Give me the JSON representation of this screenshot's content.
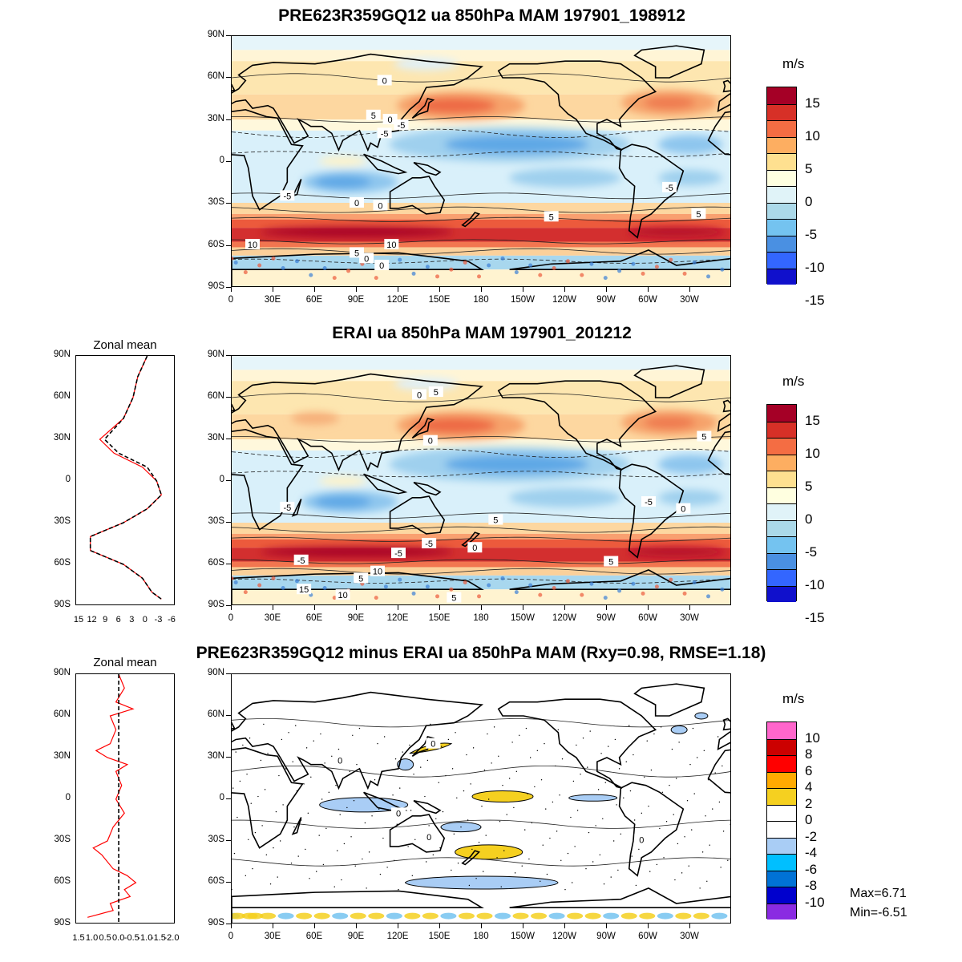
{
  "panels": [
    {
      "title": "PRE623R359GQ12 ua 850hPa MAM 197901_198912",
      "units": "m/s",
      "contour_labels": [
        "0",
        "5",
        "0",
        "-5",
        "-5",
        "-5",
        "0",
        "0",
        "-5",
        "5",
        "5",
        "10",
        "10",
        "5",
        "0",
        "0"
      ],
      "colorbar": {
        "colors": [
          "#a50026",
          "#d73027",
          "#f46d43",
          "#fdae61",
          "#fee090",
          "#ffffe0",
          "#e0f3f8",
          "#abd9e9",
          "#74c3f0",
          "#4a90e2",
          "#3366ff",
          "#1010cc"
        ],
        "labels": [
          "15",
          "10",
          "5",
          "0",
          "-5",
          "-10",
          "-15"
        ]
      }
    },
    {
      "title": "ERAI ua 850hPa MAM 197901_201212",
      "units": "m/s",
      "contour_labels": [
        "0",
        "5",
        "0",
        "-5",
        "5",
        "-5",
        "-5",
        "-5",
        "0",
        "5",
        "10",
        "15",
        "10",
        "5",
        "5",
        "0",
        "-5",
        "5"
      ],
      "colorbar": {
        "colors": [
          "#a50026",
          "#d73027",
          "#f46d43",
          "#fdae61",
          "#fee090",
          "#ffffe0",
          "#e0f3f8",
          "#abd9e9",
          "#74c3f0",
          "#4a90e2",
          "#3366ff",
          "#1010cc"
        ],
        "labels": [
          "15",
          "10",
          "5",
          "0",
          "-5",
          "-10",
          "-15"
        ]
      },
      "zonal_mean_title": "Zonal mean",
      "zonal_mean_xticks": [
        "15",
        "12",
        "9",
        "6",
        "3",
        "0",
        "-3",
        "-6"
      ]
    },
    {
      "title": "PRE623R359GQ12 minus ERAI ua 850hPa MAM (Rxy=0.98, RMSE=1.18)",
      "units": "m/s",
      "contour_labels": [
        "0",
        "0",
        "0",
        "0",
        "0"
      ],
      "colorbar": {
        "colors": [
          "#ff66cc",
          "#cc0000",
          "#ff0000",
          "#ffaa00",
          "#f5d020",
          "#ffffff",
          "#ffffff",
          "#a9cdf5",
          "#00bfff",
          "#0072d6",
          "#0000cd",
          "#8a2be2"
        ],
        "labels": [
          "10",
          "8",
          "6",
          "4",
          "2",
          "0",
          "-2",
          "-4",
          "-6",
          "-8",
          "-10"
        ]
      },
      "zonal_mean_title": "Zonal mean",
      "zonal_mean_xticks": [
        "1.5",
        "1.0",
        "0.5",
        "0.0",
        "-0.5",
        "-1.0",
        "-1.5",
        "-2.0"
      ],
      "stats": {
        "max": "Max=6.71",
        "min": "Min=-6.51"
      }
    }
  ],
  "lat_ticks": [
    "90N",
    "60N",
    "30N",
    "0",
    "30S",
    "60S",
    "90S"
  ],
  "lon_ticks": [
    "0",
    "30E",
    "60E",
    "90E",
    "120E",
    "150E",
    "180",
    "150W",
    "120W",
    "90W",
    "60W",
    "30W"
  ],
  "chart_data": [
    {
      "type": "heatmap",
      "title": "PRE623R359GQ12 ua 850hPa MAM 197901_198912",
      "units": "m/s",
      "x": "longitude 0 to 360",
      "y": "latitude -90 to 90",
      "color_levels": [
        -15,
        -10,
        -5,
        0,
        5,
        10,
        15
      ],
      "features": [
        {
          "name": "North Pacific westerly jet",
          "lat": 40,
          "lon": 165,
          "value": 10
        },
        {
          "name": "North Atlantic westerly jet",
          "lat": 42,
          "lon": 315,
          "value": 9
        },
        {
          "name": "Southern Ocean westerly belt",
          "lat": -50,
          "lon": 90,
          "value": 15
        },
        {
          "name": "Tropical Pacific easterlies",
          "lat": 12,
          "lon": 200,
          "value": -9
        },
        {
          "name": "Indian Ocean easterlies",
          "lat": -15,
          "lon": 80,
          "value": -8
        }
      ]
    },
    {
      "type": "heatmap",
      "title": "ERAI ua 850hPa MAM 197901_201212",
      "units": "m/s",
      "x": "longitude 0 to 360",
      "y": "latitude -90 to 90",
      "color_levels": [
        -15,
        -10,
        -5,
        0,
        5,
        10,
        15
      ],
      "features": [
        {
          "name": "North Pacific westerly jet",
          "lat": 40,
          "lon": 165,
          "value": 10
        },
        {
          "name": "North Atlantic westerly jet",
          "lat": 42,
          "lon": 315,
          "value": 8
        },
        {
          "name": "Southern Ocean westerly belt",
          "lat": -50,
          "lon": 90,
          "value": 15
        },
        {
          "name": "Tropical Pacific easterlies",
          "lat": 10,
          "lon": 200,
          "value": -10
        },
        {
          "name": "Indian Ocean easterlies",
          "lat": -15,
          "lon": 80,
          "value": -7
        }
      ]
    },
    {
      "type": "heatmap",
      "title": "PRE623R359GQ12 minus ERAI ua 850hPa MAM (Rxy=0.98, RMSE=1.18)",
      "units": "m/s",
      "color_levels": [
        -10,
        -8,
        -6,
        -4,
        -2,
        0,
        2,
        4,
        6,
        8,
        10
      ],
      "max": 6.71,
      "min": -6.51,
      "rxy": 0.98,
      "rmse": 1.18,
      "features": [
        {
          "name": "positive anomaly near Japan",
          "lat": 37,
          "lon": 140,
          "value": 3
        },
        {
          "name": "positive anomaly central Pacific",
          "lat": 0,
          "lon": 195,
          "value": 3
        },
        {
          "name": "positive anomaly south of New Zealand",
          "lat": -38,
          "lon": 185,
          "value": 3
        },
        {
          "name": "negative anomaly Indian Ocean",
          "lat": -5,
          "lon": 100,
          "value": -3
        },
        {
          "name": "negative anomaly Southern Ocean",
          "lat": -60,
          "lon": 200,
          "value": -3
        }
      ]
    },
    {
      "type": "line",
      "title": "Zonal mean",
      "x_axis": "u (m/s), reversed",
      "xlim": [
        15,
        -6
      ],
      "y_axis": "latitude",
      "series": [
        {
          "name": "",
          "color": "#ff0000",
          "lat": [
            90,
            75,
            60,
            45,
            30,
            20,
            10,
            0,
            -10,
            -20,
            -30,
            -40,
            -50,
            -60,
            -70,
            -80,
            -85
          ],
          "values": [
            0,
            2,
            3,
            5,
            10,
            7,
            1,
            -2,
            -3,
            0,
            5,
            12,
            12,
            5,
            1,
            -1,
            -3
          ]
        },
        {
          "name": "",
          "color": "#000000",
          "dashed": true,
          "lat": [
            90,
            75,
            60,
            45,
            30,
            20,
            10,
            0,
            -10,
            -20,
            -30,
            -40,
            -50,
            -60,
            -70,
            -80,
            -85
          ],
          "values": [
            0,
            2,
            3,
            5,
            9,
            6,
            0,
            -2,
            -3,
            0,
            5,
            12,
            12,
            5,
            1,
            -1,
            -3
          ]
        }
      ]
    },
    {
      "type": "line",
      "title": "Zonal mean",
      "x_axis": "difference u (m/s), reversed",
      "xlim": [
        1.5,
        -2.0
      ],
      "y_axis": "latitude",
      "series": [
        {
          "name": "",
          "color": "#ff0000",
          "lat": [
            90,
            80,
            70,
            65,
            60,
            50,
            40,
            35,
            30,
            25,
            20,
            10,
            0,
            -10,
            -20,
            -30,
            -35,
            -40,
            -50,
            -55,
            -60,
            -65,
            -70,
            -75,
            -80,
            -85
          ],
          "values": [
            0.0,
            -0.2,
            0.1,
            -0.5,
            0.3,
            0.1,
            0.3,
            0.8,
            0.4,
            -0.3,
            0.1,
            -0.1,
            0.1,
            -0.2,
            0.2,
            0.4,
            0.9,
            0.6,
            0.2,
            -0.3,
            -0.6,
            -0.2,
            -0.4,
            0.3,
            0.2,
            1.1
          ]
        },
        {
          "name": "",
          "color": "#000000",
          "dashed": true,
          "lat": [
            90,
            -90
          ],
          "values": [
            0,
            0
          ]
        }
      ]
    }
  ]
}
